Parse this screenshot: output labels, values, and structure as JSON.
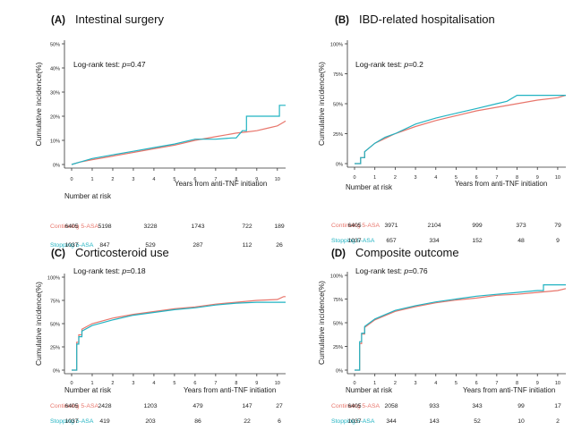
{
  "chart_data": [
    {
      "type": "line",
      "panel_label": "(A)",
      "title": "Intestinal surgery",
      "ylabel": "Cumulative incidence(%)",
      "xlabel": "Years from anti-TNF initiation",
      "xticks": [
        0,
        1,
        2,
        3,
        4,
        5,
        6,
        7,
        8,
        9,
        10
      ],
      "yticks": [
        0,
        10,
        20,
        30,
        40,
        50
      ],
      "ytick_labels": [
        "0%",
        "10%",
        "20%",
        "30%",
        "40%",
        "50%"
      ],
      "ylim": [
        0,
        50
      ],
      "xlim": [
        0,
        10.4
      ],
      "annotation": "Log-rank test: p=0.47",
      "risk_title": "Number at risk",
      "series": [
        {
          "name": "Continuing 5-ASA",
          "color": "#e8766c",
          "x": [
            0,
            0.4,
            1,
            2,
            3,
            4,
            5,
            6,
            7,
            8,
            8.5,
            9,
            9.5,
            10,
            10.2,
            10.4
          ],
          "y": [
            0,
            1,
            2,
            3.5,
            5,
            6.5,
            8,
            10,
            11.5,
            13,
            13.5,
            14,
            15,
            16,
            17,
            18
          ],
          "risk": [
            "6405",
            "5198",
            "3228",
            "1743",
            "722",
            "189"
          ]
        },
        {
          "name": "Stopping 5-ASA",
          "color": "#21b3c2",
          "x": [
            0,
            0.4,
            1,
            2,
            3,
            4,
            5,
            6,
            7,
            7.8,
            8,
            8.3,
            8.5,
            9,
            9.5,
            10,
            10.1,
            10.4
          ],
          "y": [
            0,
            1,
            2.5,
            4,
            5.5,
            7,
            8.5,
            10.5,
            10.5,
            11,
            11,
            14,
            20,
            20,
            20,
            20,
            24.5,
            24.5
          ],
          "risk": [
            "1037",
            "847",
            "529",
            "287",
            "112",
            "26"
          ]
        }
      ]
    },
    {
      "type": "line",
      "panel_label": "(B)",
      "title": "IBD-related hospitalisation",
      "ylabel": "Cumulative incidence(%)",
      "xlabel": "Years from anti-TNF initiation",
      "xticks": [
        0,
        1,
        2,
        3,
        4,
        5,
        6,
        7,
        8,
        9,
        10
      ],
      "yticks": [
        0,
        25,
        50,
        75,
        100
      ],
      "ytick_labels": [
        "0%",
        "25%",
        "50%",
        "75%",
        "100%"
      ],
      "ylim": [
        0,
        100
      ],
      "xlim": [
        0,
        10.4
      ],
      "annotation": "Log-rank test: p=0.2",
      "risk_title": "Number at risk",
      "series": [
        {
          "name": "Continuing 5-ASA",
          "color": "#e8766c",
          "x": [
            0,
            0.3,
            0.5,
            1,
            1.5,
            2,
            3,
            4,
            5,
            6,
            7,
            8,
            9,
            10,
            10.4
          ],
          "y": [
            0,
            5,
            10,
            17,
            21,
            25,
            31,
            36,
            40,
            44,
            47,
            50,
            53,
            55,
            57
          ],
          "risk": [
            "6405",
            "3971",
            "2104",
            "999",
            "373",
            "79"
          ]
        },
        {
          "name": "Stopping 5-ASA",
          "color": "#21b3c2",
          "x": [
            0,
            0.3,
            0.5,
            1,
            1.5,
            2,
            3,
            4,
            5,
            6,
            7,
            7.5,
            8,
            9,
            10,
            10.4
          ],
          "y": [
            0,
            5,
            10,
            17,
            22,
            25,
            33,
            38,
            42,
            46,
            50,
            52,
            57,
            57,
            57,
            57
          ],
          "risk": [
            "1037",
            "657",
            "334",
            "152",
            "48",
            "9"
          ]
        }
      ]
    },
    {
      "type": "line",
      "panel_label": "(C)",
      "title": "Corticosteroid use",
      "ylabel": "Cumulative incidence(%)",
      "xlabel": "Years from anti-TNF initiation",
      "xticks": [
        0,
        1,
        2,
        3,
        4,
        5,
        6,
        7,
        8,
        9,
        10
      ],
      "yticks": [
        0,
        25,
        50,
        75,
        100
      ],
      "ytick_labels": [
        "0%",
        "25%",
        "50%",
        "75%",
        "100%"
      ],
      "ylim": [
        0,
        100
      ],
      "xlim": [
        0,
        10.4
      ],
      "annotation": "Log-rank test: p=0.18",
      "risk_title": "Number at risk",
      "series": [
        {
          "name": "Continuing 5-ASA",
          "color": "#e8766c",
          "x": [
            0,
            0.2,
            0.25,
            0.35,
            0.5,
            1,
            2,
            3,
            4,
            5,
            6,
            7,
            8,
            9,
            10,
            10.3,
            10.4
          ],
          "y": [
            0,
            0,
            30,
            38,
            44,
            50,
            56,
            60,
            63,
            66,
            68,
            71,
            73,
            75,
            76,
            79,
            79
          ],
          "risk": [
            "6405",
            "2428",
            "1203",
            "479",
            "147",
            "27"
          ]
        },
        {
          "name": "Stopping 5-ASA",
          "color": "#21b3c2",
          "x": [
            0,
            0.2,
            0.25,
            0.35,
            0.5,
            1,
            2,
            3,
            4,
            5,
            6,
            7,
            8,
            9,
            10,
            10.4
          ],
          "y": [
            0,
            0,
            28,
            36,
            42,
            48,
            54,
            59,
            62,
            65,
            67,
            70,
            72,
            73,
            73,
            73
          ],
          "risk": [
            "1037",
            "419",
            "203",
            "86",
            "22",
            "6"
          ]
        }
      ]
    },
    {
      "type": "line",
      "panel_label": "(D)",
      "title": "Composite outcome",
      "ylabel": "Cumulative incidence(%)",
      "xlabel": "Years from anti-TNF initiation",
      "xticks": [
        0,
        1,
        2,
        3,
        4,
        5,
        6,
        7,
        8,
        9,
        10
      ],
      "yticks": [
        0,
        25,
        50,
        75,
        100
      ],
      "ytick_labels": [
        "0%",
        "25%",
        "50%",
        "75%",
        "100%"
      ],
      "ylim": [
        0,
        100
      ],
      "xlim": [
        0,
        10.4
      ],
      "annotation": "Log-rank test: p=0.76",
      "risk_title": "Number at risk",
      "series": [
        {
          "name": "Continuing 5-ASA",
          "color": "#e8766c",
          "x": [
            0,
            0.2,
            0.25,
            0.35,
            0.5,
            1,
            2,
            3,
            4,
            5,
            6,
            7,
            8,
            9,
            10,
            10.4
          ],
          "y": [
            0,
            0,
            28,
            38,
            45,
            53,
            62,
            67,
            71,
            74,
            76,
            79,
            80,
            82,
            84,
            86
          ],
          "risk": [
            "6405",
            "2058",
            "933",
            "343",
            "99",
            "17"
          ]
        },
        {
          "name": "Stopping 5-ASA",
          "color": "#21b3c2",
          "x": [
            0,
            0.2,
            0.25,
            0.35,
            0.5,
            1,
            2,
            3,
            4,
            5,
            6,
            7,
            8,
            9,
            9.3,
            10,
            10.4
          ],
          "y": [
            0,
            0,
            30,
            39,
            46,
            54,
            63,
            68,
            72,
            75,
            78,
            80,
            82,
            84,
            90,
            90,
            90
          ],
          "risk": [
            "1037",
            "344",
            "143",
            "52",
            "10",
            "2"
          ]
        }
      ]
    }
  ]
}
